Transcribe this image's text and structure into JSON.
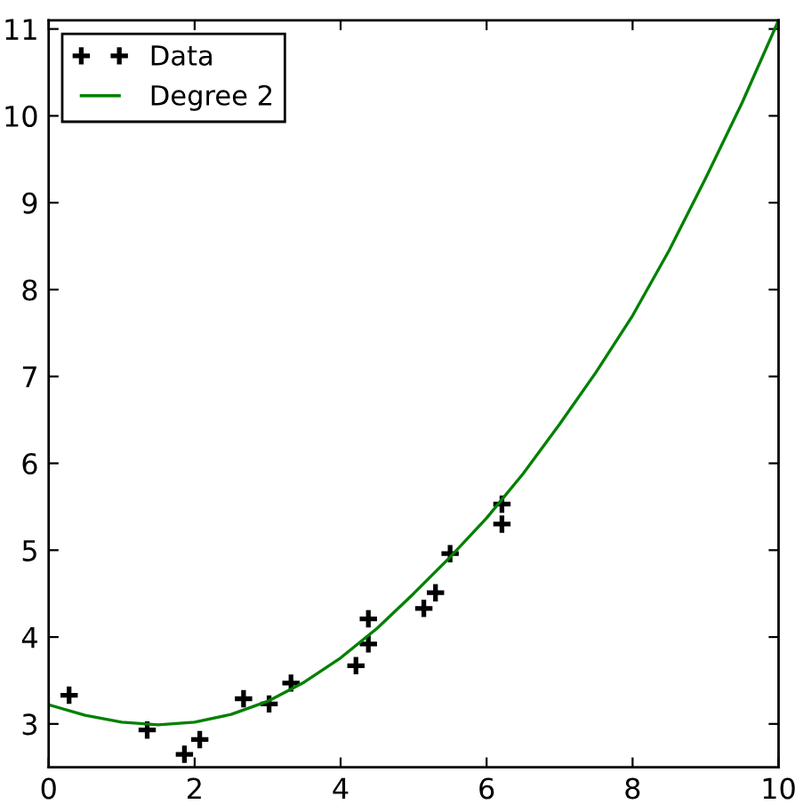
{
  "chart_data": {
    "type": "scatter",
    "xlim": [
      0,
      10
    ],
    "ylim": [
      2.5,
      11.1
    ],
    "xticks": [
      0,
      2,
      4,
      6,
      8,
      10
    ],
    "yticks": [
      3,
      4,
      5,
      6,
      7,
      8,
      9,
      10,
      11
    ],
    "legend": "top left",
    "series": [
      {
        "name": "Data",
        "color": "#000000",
        "marker": "cross",
        "x": [
          0.28,
          1.35,
          1.86,
          2.07,
          2.67,
          3.02,
          3.32,
          4.21,
          4.38,
          4.38,
          5.14,
          5.3,
          5.5,
          6.21,
          6.21
        ],
        "values": [
          3.33,
          2.93,
          2.65,
          2.82,
          3.29,
          3.23,
          3.47,
          3.67,
          3.92,
          4.21,
          4.33,
          4.51,
          4.96,
          5.3,
          5.53
        ]
      },
      {
        "name": "Degree 2",
        "type": "line",
        "color": "#008000",
        "marker": "none",
        "line_style": "solid",
        "x": [
          0,
          0.5,
          1,
          1.5,
          2,
          2.5,
          3,
          3.5,
          4,
          4.5,
          5,
          5.5,
          6,
          6.5,
          7,
          7.5,
          8,
          8.5,
          9,
          9.5,
          10
        ],
        "values": [
          3.22,
          3.1,
          3.02,
          2.99,
          3.02,
          3.11,
          3.26,
          3.48,
          3.76,
          4.1,
          4.5,
          4.92,
          5.37,
          5.88,
          6.45,
          7.05,
          7.7,
          8.45,
          9.28,
          10.15,
          11.1
        ]
      }
    ]
  }
}
